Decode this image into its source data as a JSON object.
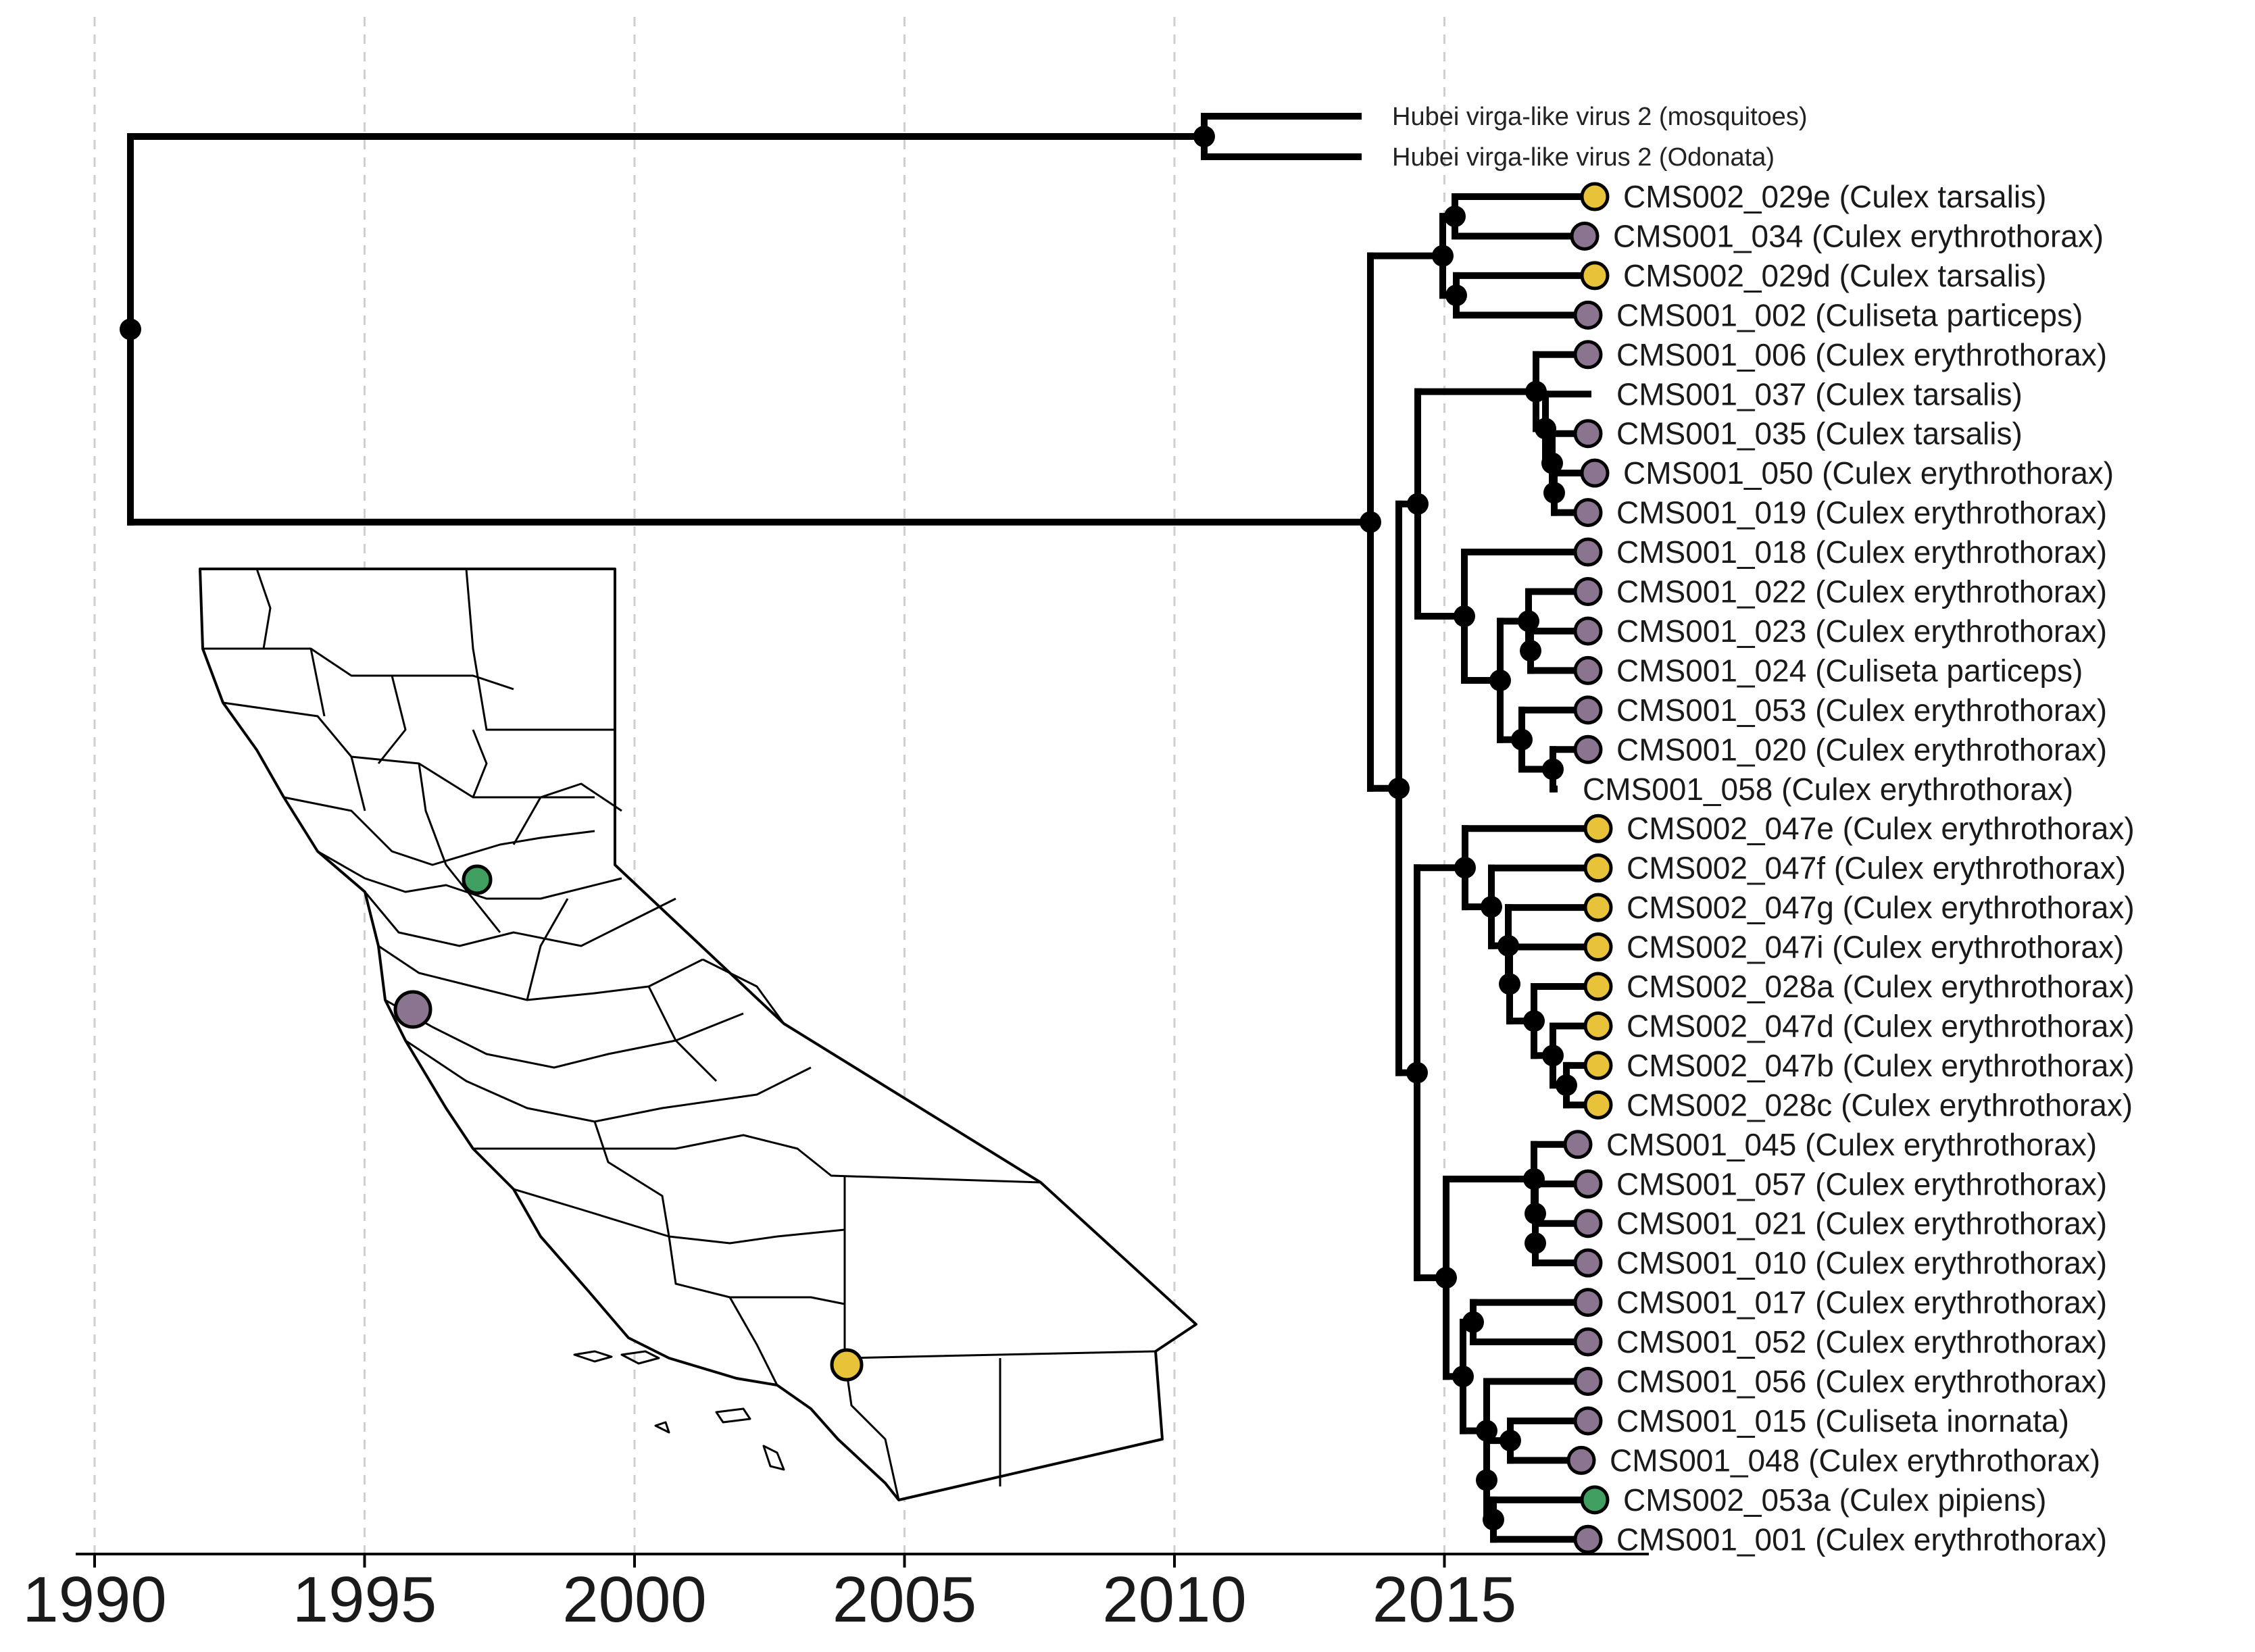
{
  "axis": {
    "ticks": [
      {
        "label": "1990",
        "value": 1990
      },
      {
        "label": "1995",
        "value": 1995
      },
      {
        "label": "2000",
        "value": 2000
      },
      {
        "label": "2005",
        "value": 2005
      },
      {
        "label": "2010",
        "value": 2010
      },
      {
        "label": "2015",
        "value": 2015
      }
    ],
    "range": [
      1989.7,
      2019.0
    ],
    "grid": true
  },
  "colors": {
    "branch": "#000000",
    "yellow": "#E8C33A",
    "purple": "#8A748F",
    "green": "#3F9E60",
    "grid": "#cfcfcf"
  },
  "outgroup": [
    {
      "label": "Hubei virga-like virus 2 (mosquitoes)"
    },
    {
      "label": "Hubei virga-like virus 2 (Odonata)"
    }
  ],
  "tips": [
    {
      "label": "CMS002_029e (Culex tarsalis)",
      "color": "yellow"
    },
    {
      "label": "CMS001_034 (Culex erythrothorax)",
      "color": "purple"
    },
    {
      "label": "CMS002_029d (Culex tarsalis)",
      "color": "yellow"
    },
    {
      "label": "CMS001_002 (Culiseta particeps)",
      "color": "purple"
    },
    {
      "label": "CMS001_006 (Culex erythrothorax)",
      "color": "purple"
    },
    {
      "label": "CMS001_037 (Culex tarsalis)",
      "color": "none"
    },
    {
      "label": "CMS001_035 (Culex tarsalis)",
      "color": "purple"
    },
    {
      "label": "CMS001_050 (Culex erythrothorax)",
      "color": "purple"
    },
    {
      "label": "CMS001_019 (Culex erythrothorax)",
      "color": "purple"
    },
    {
      "label": "CMS001_018 (Culex erythrothorax)",
      "color": "purple"
    },
    {
      "label": "CMS001_022 (Culex erythrothorax)",
      "color": "purple"
    },
    {
      "label": "CMS001_023 (Culex erythrothorax)",
      "color": "purple"
    },
    {
      "label": "CMS001_024 (Culiseta particeps)",
      "color": "purple"
    },
    {
      "label": "CMS001_053 (Culex erythrothorax)",
      "color": "purple"
    },
    {
      "label": "CMS001_020 (Culex erythrothorax)",
      "color": "purple"
    },
    {
      "label": "CMS001_058 (Culex erythrothorax)",
      "color": "none"
    },
    {
      "label": "CMS002_047e (Culex erythrothorax)",
      "color": "yellow"
    },
    {
      "label": "CMS002_047f (Culex erythrothorax)",
      "color": "yellow"
    },
    {
      "label": "CMS002_047g (Culex erythrothorax)",
      "color": "yellow"
    },
    {
      "label": "CMS002_047i (Culex erythrothorax)",
      "color": "yellow"
    },
    {
      "label": "CMS002_028a (Culex erythrothorax)",
      "color": "yellow"
    },
    {
      "label": "CMS002_047d (Culex erythrothorax)",
      "color": "yellow"
    },
    {
      "label": "CMS002_047b (Culex erythrothorax)",
      "color": "yellow"
    },
    {
      "label": "CMS002_028c (Culex erythrothorax)",
      "color": "yellow"
    },
    {
      "label": "CMS001_045 (Culex erythrothorax)",
      "color": "purple"
    },
    {
      "label": "CMS001_057 (Culex erythrothorax)",
      "color": "purple"
    },
    {
      "label": "CMS001_021 (Culex erythrothorax)",
      "color": "purple"
    },
    {
      "label": "CMS001_010 (Culex erythrothorax)",
      "color": "purple"
    },
    {
      "label": "CMS001_017 (Culex erythrothorax)",
      "color": "purple"
    },
    {
      "label": "CMS001_052 (Culex erythrothorax)",
      "color": "purple"
    },
    {
      "label": "CMS001_056 (Culex erythrothorax)",
      "color": "purple"
    },
    {
      "label": "CMS001_015 (Culiseta inornata)",
      "color": "purple"
    },
    {
      "label": "CMS001_048 (Culex erythrothorax)",
      "color": "purple"
    },
    {
      "label": "CMS002_053a (Culex pipiens)",
      "color": "green"
    },
    {
      "label": "CMS001_001 (Culex erythrothorax)",
      "color": "purple"
    }
  ],
  "map_sites": [
    {
      "color": "green"
    },
    {
      "color": "purple"
    },
    {
      "color": "yellow"
    }
  ]
}
